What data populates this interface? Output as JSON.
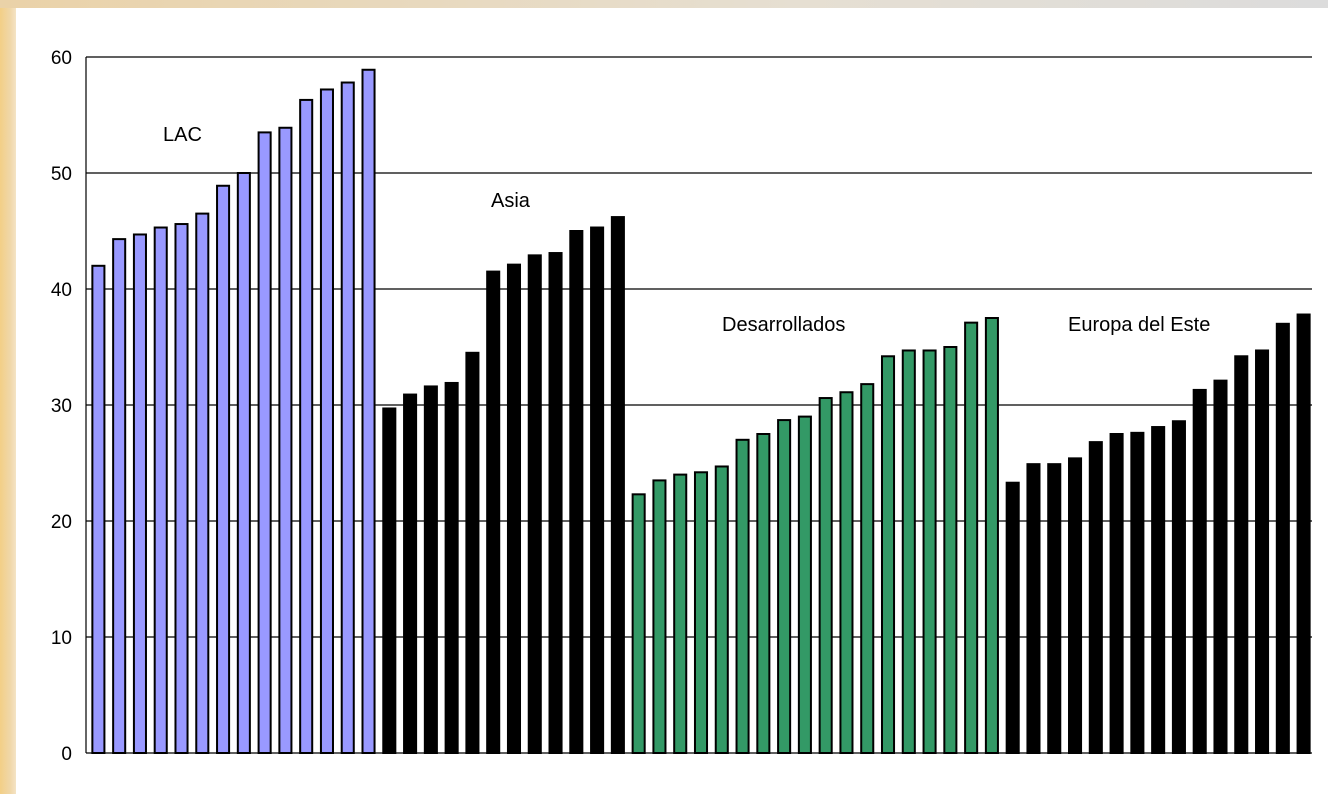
{
  "chart_data": {
    "type": "bar",
    "title": "",
    "xlabel": "",
    "ylabel": "",
    "ylim": [
      0,
      60
    ],
    "yticks": [
      0,
      10,
      20,
      30,
      40,
      50,
      60
    ],
    "grid": true,
    "legend": "none",
    "groups": [
      {
        "name": "LAC",
        "color": "#9999ff",
        "values": [
          42.0,
          44.3,
          44.7,
          45.3,
          45.6,
          46.5,
          48.9,
          50.0,
          53.5,
          53.9,
          56.3,
          57.2,
          57.8,
          58.9
        ]
      },
      {
        "name": "Asia",
        "color": "#000000",
        "values": [
          29.7,
          30.9,
          31.6,
          31.9,
          34.5,
          41.5,
          42.1,
          42.9,
          43.1,
          45.0,
          45.3,
          46.2
        ]
      },
      {
        "name": "Desarrollados",
        "color": "#339966",
        "values": [
          22.3,
          23.5,
          24.0,
          24.2,
          24.7,
          27.0,
          27.5,
          28.7,
          29.0,
          30.6,
          31.1,
          31.8,
          34.2,
          34.7,
          34.7,
          35.0,
          37.1,
          37.5
        ]
      },
      {
        "name": "Europa del Este",
        "color": "#000000",
        "values": [
          23.3,
          24.9,
          24.9,
          25.4,
          26.8,
          27.5,
          27.6,
          28.1,
          28.6,
          31.3,
          32.1,
          34.2,
          34.7,
          37.0,
          37.8
        ]
      }
    ]
  }
}
